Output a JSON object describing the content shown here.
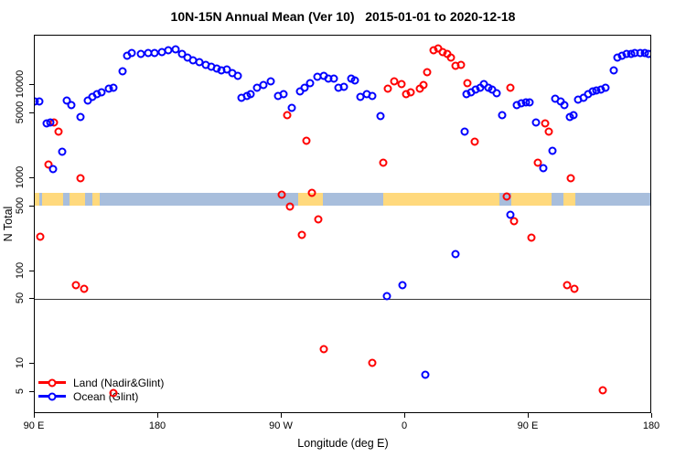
{
  "title": "10N-15N Annual Mean (Ver 10)   2015-01-01 to 2020-12-18",
  "legend": {
    "items": [
      {
        "label": "Land (Nadir&Glint)",
        "color": "#ff0000"
      },
      {
        "label": "Ocean (Glint)",
        "color": "#0000ff"
      }
    ]
  },
  "chart_data": {
    "type": "scatter",
    "title": "10N-15N Annual Mean (Ver 10)   2015-01-01 to 2020-12-18",
    "xlabel": "Longitude (deg E)",
    "ylabel": "N Total",
    "x_axis_note": "axis wraps 450 deg starting at 90E: 90E-180-90W-0-90E-180",
    "x_range_deg": [
      0,
      450
    ],
    "y_scale": "log10",
    "grid": false,
    "reference_line_value": 50,
    "x_ticks": [
      {
        "deg": 0,
        "label": "90 E"
      },
      {
        "deg": 90,
        "label": "180"
      },
      {
        "deg": 180,
        "label": "90 W"
      },
      {
        "deg": 270,
        "label": "0"
      },
      {
        "deg": 360,
        "label": "90 E"
      },
      {
        "deg": 450,
        "label": "180"
      }
    ],
    "y_ticks": [
      5,
      10,
      50,
      100,
      500,
      1000,
      5000,
      10000
    ],
    "map_band": {
      "ocean_color": "#a8bedc",
      "land_color": "#ffd97d",
      "band_value_range": [
        510,
        700
      ],
      "land_patches_deg": [
        [
          0,
          3
        ],
        [
          5.3,
          20.7
        ],
        [
          25.3,
          36.7
        ],
        [
          42,
          47
        ],
        [
          192,
          210
        ],
        [
          254,
          338.7
        ],
        [
          347,
          376.7
        ],
        [
          385,
          394
        ]
      ]
    },
    "series": [
      {
        "name": "Land (Nadir&Glint)",
        "color": "#ff0000",
        "points": [
          [
            4.2,
            234
          ],
          [
            9.8,
            1400
          ],
          [
            14.2,
            3950
          ],
          [
            17.5,
            3140
          ],
          [
            29.8,
            71
          ],
          [
            33.5,
            995
          ],
          [
            36,
            64
          ],
          [
            57.3,
            4.9
          ],
          [
            179.8,
            660
          ],
          [
            183.8,
            4730
          ],
          [
            186,
            500
          ],
          [
            194.9,
            243
          ],
          [
            198,
            2520
          ],
          [
            202,
            695
          ],
          [
            206.9,
            363
          ],
          [
            210.4,
            14.5
          ],
          [
            246,
            10.2
          ],
          [
            254.2,
            1460
          ],
          [
            257.1,
            9250
          ],
          [
            262,
            10900
          ],
          [
            267.1,
            10300
          ],
          [
            270.9,
            8050
          ],
          [
            274.2,
            8350
          ],
          [
            280.9,
            9250
          ],
          [
            283.1,
            10000
          ],
          [
            285.8,
            13900
          ],
          [
            290.9,
            23900
          ],
          [
            294.2,
            25000
          ],
          [
            297.1,
            22700
          ],
          [
            300.9,
            21500
          ],
          [
            303.1,
            19900
          ],
          [
            306.5,
            16300
          ],
          [
            310.9,
            16600
          ],
          [
            315,
            10600
          ],
          [
            320.9,
            2480
          ],
          [
            343.8,
            630
          ],
          [
            346.9,
            9330
          ],
          [
            349.1,
            347
          ],
          [
            362,
            230
          ],
          [
            366.9,
            1460
          ],
          [
            372,
            3880
          ],
          [
            374.9,
            3140
          ],
          [
            388.2,
            71
          ],
          [
            390.5,
            995
          ],
          [
            393.5,
            64
          ],
          [
            413.8,
            5.2
          ]
        ]
      },
      {
        "name": "Ocean (Glint)",
        "color": "#0000ff",
        "points": [
          [
            0,
            6700
          ],
          [
            3.5,
            6700
          ],
          [
            8.7,
            3890
          ],
          [
            11.3,
            3970
          ],
          [
            13.1,
            1250
          ],
          [
            20.2,
            1940
          ],
          [
            23.3,
            6890
          ],
          [
            26.5,
            6110
          ],
          [
            33.1,
            4520
          ],
          [
            38.7,
            6890
          ],
          [
            42,
            7540
          ],
          [
            45.3,
            7980
          ],
          [
            48.7,
            8450
          ],
          [
            54.2,
            9170
          ],
          [
            57.5,
            9330
          ],
          [
            64.2,
            14000
          ],
          [
            67.5,
            20900
          ],
          [
            70.9,
            22000
          ],
          [
            77.5,
            21500
          ],
          [
            82.5,
            22200
          ],
          [
            87.5,
            22400
          ],
          [
            92.5,
            22700
          ],
          [
            97.5,
            23600
          ],
          [
            102.5,
            24500
          ],
          [
            107,
            21500
          ],
          [
            111,
            19900
          ],
          [
            115.3,
            18700
          ],
          [
            119.8,
            17600
          ],
          [
            124.7,
            16600
          ],
          [
            128.7,
            15800
          ],
          [
            132.7,
            15100
          ],
          [
            135.8,
            14400
          ],
          [
            139.8,
            14700
          ],
          [
            143.8,
            13600
          ],
          [
            148.2,
            12500
          ],
          [
            150.9,
            7260
          ],
          [
            154.9,
            7660
          ],
          [
            157.1,
            8000
          ],
          [
            162,
            9330
          ],
          [
            166.9,
            10000
          ],
          [
            172,
            10950
          ],
          [
            177.5,
            7660
          ],
          [
            181.5,
            8000
          ],
          [
            187.5,
            5660
          ],
          [
            193.1,
            8640
          ],
          [
            196.5,
            9330
          ],
          [
            200.9,
            10560
          ],
          [
            206,
            12250
          ],
          [
            210.4,
            12740
          ],
          [
            214,
            11700
          ],
          [
            218,
            11700
          ],
          [
            221.5,
            9330
          ],
          [
            225.3,
            9600
          ],
          [
            230.5,
            11700
          ],
          [
            233.5,
            11200
          ],
          [
            237.5,
            7500
          ],
          [
            242,
            8000
          ],
          [
            246,
            7660
          ],
          [
            252,
            4670
          ],
          [
            256.5,
            54
          ],
          [
            268.2,
            71
          ],
          [
            284.7,
            7.7
          ],
          [
            306.9,
            151
          ],
          [
            313.1,
            3140
          ],
          [
            314.9,
            7920
          ],
          [
            318,
            8450
          ],
          [
            321.5,
            8900
          ],
          [
            324.7,
            9330
          ],
          [
            327,
            10300
          ],
          [
            330.5,
            9450
          ],
          [
            333.5,
            8900
          ],
          [
            336.5,
            8200
          ],
          [
            340.9,
            4730
          ],
          [
            346.9,
            407
          ],
          [
            351.3,
            6100
          ],
          [
            354.9,
            6380
          ],
          [
            358,
            6570
          ],
          [
            360.9,
            6570
          ],
          [
            365.3,
            3950
          ],
          [
            370.5,
            1280
          ],
          [
            377.1,
            1960
          ],
          [
            379.3,
            7080
          ],
          [
            383.1,
            6720
          ],
          [
            386,
            6100
          ],
          [
            389.8,
            4520
          ],
          [
            392.7,
            4730
          ],
          [
            395.8,
            7000
          ],
          [
            399.8,
            7390
          ],
          [
            403.5,
            8000
          ],
          [
            406.5,
            8640
          ],
          [
            409.5,
            8800
          ],
          [
            412.5,
            8900
          ],
          [
            416,
            9330
          ],
          [
            422,
            14400
          ],
          [
            424.9,
            19900
          ],
          [
            428,
            20900
          ],
          [
            431.5,
            21500
          ],
          [
            434.7,
            21800
          ],
          [
            437.5,
            22200
          ],
          [
            441.3,
            22200
          ],
          [
            444.9,
            22200
          ],
          [
            447.5,
            21800
          ]
        ]
      }
    ]
  }
}
